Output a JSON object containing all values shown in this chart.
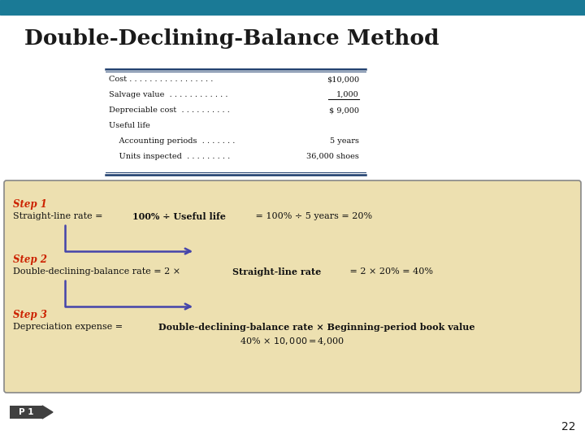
{
  "title": "Double-Declining-Balance Method",
  "title_color": "#1a1a1a",
  "header_bar_color": "#1a7a96",
  "bg_color": "#ffffff",
  "table_rows": [
    [
      "Cost . . . . . . . . . . . . . . . . .",
      "$10,000",
      false
    ],
    [
      "Salvage value  . . . . . . . . . . . .",
      "1,000",
      true
    ],
    [
      "Depreciable cost  . . . . . . . . . .",
      "$ 9,000",
      false
    ],
    [
      "Useful life",
      "",
      false
    ],
    [
      "    Accounting periods  . . . . . . .",
      "5 years",
      false
    ],
    [
      "    Units inspected  . . . . . . . . .",
      "36,000 shoes",
      false
    ]
  ],
  "step_box_bg": "#ede0b0",
  "step_box_border": "#888888",
  "step_color": "#cc2200",
  "step1_label": "Step 1",
  "step2_label": "Step 2",
  "step3_label": "Step 3",
  "step1_text_normal": "Straight-line rate = ",
  "step1_text_bold": "100% ÷ Useful life",
  "step1_text_normal2": " = 100% ÷ 5 years = 20%",
  "step2_text_normal": "Double-declining-balance rate = 2 × ",
  "step2_text_bold": "Straight-line rate",
  "step2_text_normal2": " = 2 × 20% = 40%",
  "step3_text_normal": "Depreciation expense = ",
  "step3_text_bold": "Double-declining-balance rate × Beginning-period book value",
  "step3_line2": "40% × $10,000 = $4,000",
  "arrow_color": "#4444aa",
  "p1_bg": "#404040",
  "p1_text": "P 1",
  "page_num": "22",
  "table_line_color": "#1a3a6a"
}
